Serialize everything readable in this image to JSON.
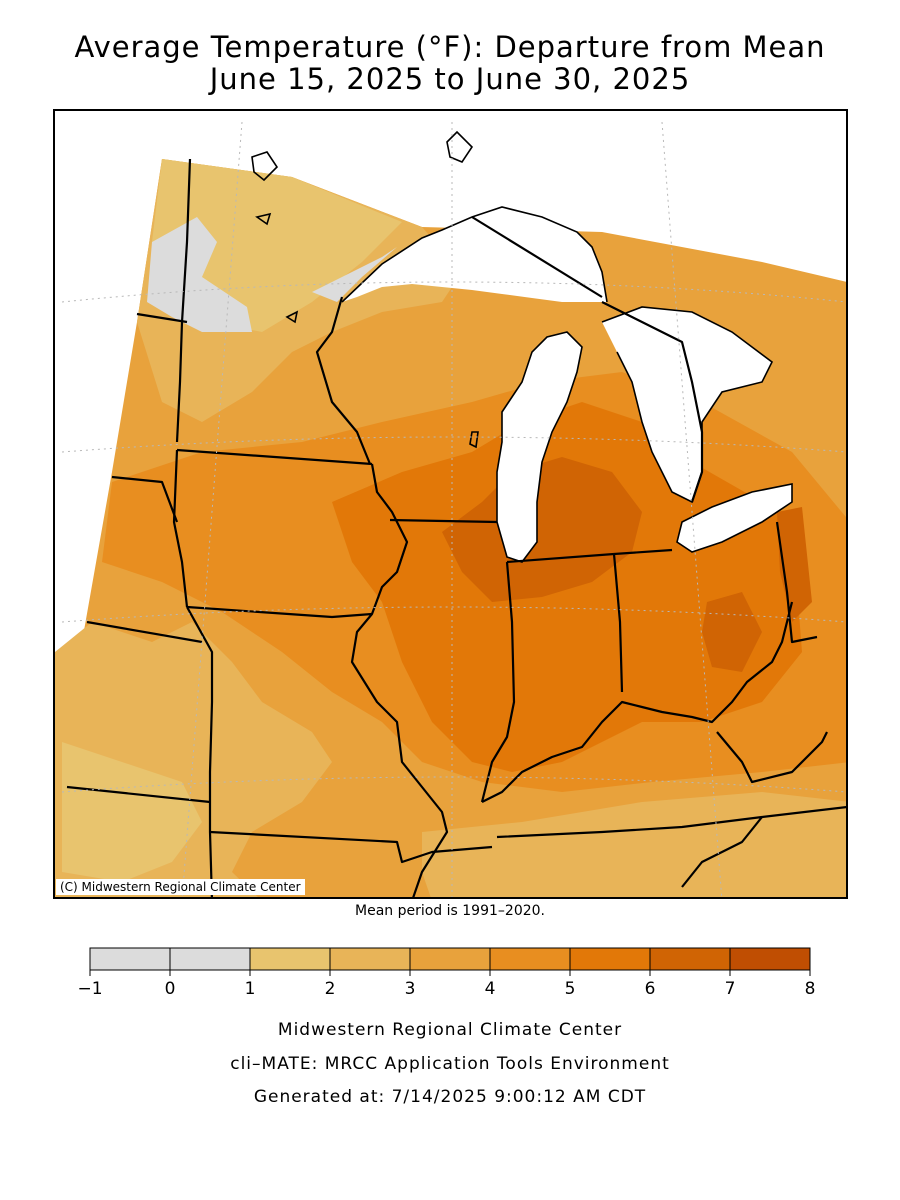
{
  "title": {
    "line1": "Average Temperature (°F): Departure from Mean",
    "line2": "June 15, 2025 to June 30, 2025"
  },
  "map": {
    "copyright": "(C) Midwestern Regional Climate Center",
    "mean_period": "Mean period is 1991–2020.",
    "states_shown": [
      "Minnesota",
      "Wisconsin",
      "Michigan",
      "Iowa",
      "Illinois",
      "Indiana",
      "Ohio",
      "Missouri",
      "Kentucky"
    ],
    "water_color": "#ffffff",
    "border_color": "#000000"
  },
  "legend": {
    "bins": [
      {
        "from": -1,
        "to": 0,
        "color": "#dcdcdc"
      },
      {
        "from": 0,
        "to": 1,
        "color": "#dcdcdc"
      },
      {
        "from": 1,
        "to": 2,
        "color": "#e8c46e"
      },
      {
        "from": 2,
        "to": 3,
        "color": "#e8b458"
      },
      {
        "from": 3,
        "to": 4,
        "color": "#e8a23c"
      },
      {
        "from": 4,
        "to": 5,
        "color": "#e88e20"
      },
      {
        "from": 5,
        "to": 6,
        "color": "#e27808"
      },
      {
        "from": 6,
        "to": 7,
        "color": "#d06404"
      },
      {
        "from": 7,
        "to": 8,
        "color": "#c04e02"
      }
    ],
    "tick_labels": [
      "−1",
      "0",
      "1",
      "2",
      "3",
      "4",
      "5",
      "6",
      "7",
      "8"
    ]
  },
  "footer": {
    "line1": "Midwestern Regional Climate Center",
    "line2": "cli–MATE: MRCC Application Tools Environment",
    "line3": "Generated at: 7/14/2025 9:00:12 AM CDT"
  }
}
